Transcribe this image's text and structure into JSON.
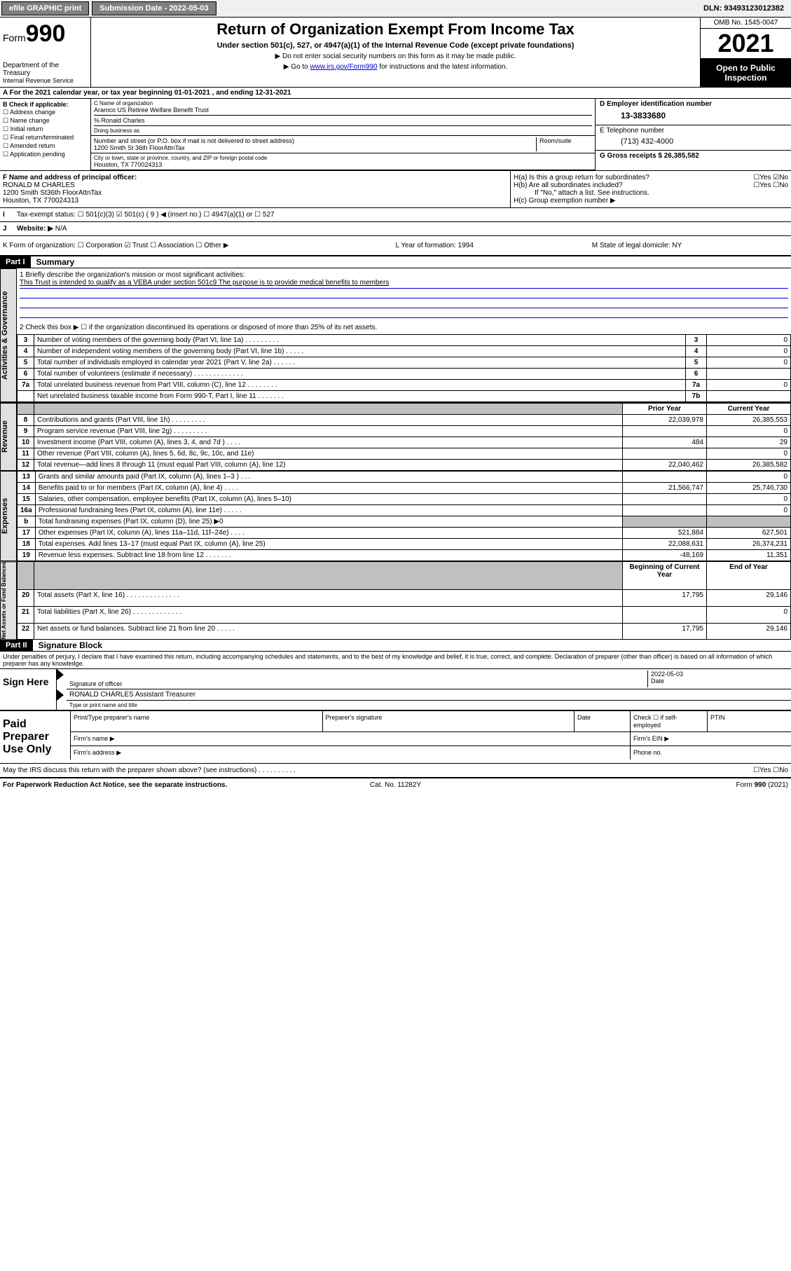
{
  "topbar": {
    "efile": "efile GRAPHIC print",
    "submission": "Submission Date - 2022-05-03",
    "dln": "DLN: 93493123012382"
  },
  "header": {
    "form_prefix": "Form",
    "form_num": "990",
    "dept": "Department of the Treasury",
    "irs": "Internal Revenue Service",
    "title": "Return of Organization Exempt From Income Tax",
    "subtitle": "Under section 501(c), 527, or 4947(a)(1) of the Internal Revenue Code (except private foundations)",
    "instr1": "▶ Do not enter social security numbers on this form as it may be made public.",
    "instr2_pre": "▶ Go to ",
    "instr2_link": "www.irs.gov/Form990",
    "instr2_post": " for instructions and the latest information.",
    "omb": "OMB No. 1545-0047",
    "year": "2021",
    "open": "Open to Public Inspection"
  },
  "sectionA": {
    "a_line": "A For the 2021 calendar year, or tax year beginning 01-01-2021   , and ending 12-31-2021",
    "b_label": "B Check if applicable:",
    "b_opts": [
      "☐ Address change",
      "☐ Name change",
      "☐ Initial return",
      "☐ Final return/terminated",
      "☐ Amended return",
      "☐ Application pending"
    ],
    "c_label": "C Name of organization",
    "c_name": "Aramco US Retiree Welfare Benefit Trust",
    "c_pct": "% Ronald Charles",
    "c_dba": "Doing business as",
    "addr_label": "Number and street (or P.O. box if mail is not delivered to street address)",
    "addr": "1200 Smith St 36th FloorAttnTax",
    "room_label": "Room/suite",
    "city_label": "City or town, state or province, country, and ZIP or foreign postal code",
    "city": "Houston, TX  770024313",
    "d_label": "D Employer identification number",
    "d_ein": "13-3833680",
    "e_label": "E Telephone number",
    "e_phone": "(713) 432-4000",
    "g_label": "G Gross receipts $ 26,385,582",
    "f_label": "F Name and address of principal officer:",
    "f_name": "RONALD M CHARLES",
    "f_addr": "1200 Smith St36th FloorAttnTax",
    "f_city": "Houston, TX  770024313",
    "ha": "H(a)  Is this a group return for subordinates?",
    "ha_ans": "☐Yes ☑No",
    "hb": "H(b)  Are all subordinates included?",
    "hb_ans": "☐Yes ☐No",
    "hb_note": "If \"No,\" attach a list. See instructions.",
    "hc": "H(c)  Group exemption number ▶",
    "i_label": "Tax-exempt status:",
    "i_opts": "☐ 501(c)(3)   ☑ 501(c) ( 9 ) ◀ (insert no.)   ☐ 4947(a)(1) or   ☐ 527",
    "j_label": "Website: ▶",
    "j_val": "N/A",
    "k_label": "K Form of organization:  ☐ Corporation  ☑ Trust  ☐ Association  ☐ Other ▶",
    "l_label": "L Year of formation: 1994",
    "m_label": "M State of legal domicile: NY"
  },
  "part1": {
    "hdr": "Part I",
    "title": "Summary",
    "q1": "1  Briefly describe the organization's mission or most significant activities:",
    "q1_ans": "This Trust is intended to qualify as a VEBA under section 501c9 The purpose is to provide medical benefits to members",
    "q2": "2  Check this box ▶ ☐ if the organization discontinued its operations or disposed of more than 25% of its net assets.",
    "rows_gov": [
      {
        "n": "3",
        "d": "Number of voting members of the governing body (Part VI, line 1a)  .  .  .  .  .  .  .  .  .",
        "b": "3",
        "v": "0"
      },
      {
        "n": "4",
        "d": "Number of independent voting members of the governing body (Part VI, line 1b)  .  .  .  .  .",
        "b": "4",
        "v": "0"
      },
      {
        "n": "5",
        "d": "Total number of individuals employed in calendar year 2021 (Part V, line 2a)  .  .  .  .  .  .",
        "b": "5",
        "v": "0"
      },
      {
        "n": "6",
        "d": "Total number of volunteers (estimate if necessary)  .  .  .  .  .  .  .  .  .  .  .  .  .",
        "b": "6",
        "v": ""
      },
      {
        "n": "7a",
        "d": "Total unrelated business revenue from Part VIII, column (C), line 12  .  .  .  .  .  .  .  .",
        "b": "7a",
        "v": "0"
      },
      {
        "n": "",
        "d": "Net unrelated business taxable income from Form 990-T, Part I, line 11  .  .  .  .  .  .  .",
        "b": "7b",
        "v": ""
      }
    ],
    "col_hdrs": {
      "prior": "Prior Year",
      "current": "Current Year"
    },
    "rows_rev": [
      {
        "n": "8",
        "d": "Contributions and grants (Part VIII, line 1h)  .  .  .  .  .  .  .  .  .",
        "p": "22,039,978",
        "c": "26,385,553"
      },
      {
        "n": "9",
        "d": "Program service revenue (Part VIII, line 2g)  .  .  .  .  .  .  .  .  .",
        "p": "",
        "c": "0"
      },
      {
        "n": "10",
        "d": "Investment income (Part VIII, column (A), lines 3, 4, and 7d )  .  .  .  .",
        "p": "484",
        "c": "29"
      },
      {
        "n": "11",
        "d": "Other revenue (Part VIII, column (A), lines 5, 6d, 8c, 9c, 10c, and 11e)",
        "p": "",
        "c": "0"
      },
      {
        "n": "12",
        "d": "Total revenue—add lines 8 through 11 (must equal Part VIII, column (A), line 12)",
        "p": "22,040,462",
        "c": "26,385,582"
      }
    ],
    "rows_exp": [
      {
        "n": "13",
        "d": "Grants and similar amounts paid (Part IX, column (A), lines 1–3 )  .  .  .",
        "p": "",
        "c": "0"
      },
      {
        "n": "14",
        "d": "Benefits paid to or for members (Part IX, column (A), line 4)  .  .  .  .",
        "p": "21,566,747",
        "c": "25,746,730"
      },
      {
        "n": "15",
        "d": "Salaries, other compensation, employee benefits (Part IX, column (A), lines 5–10)",
        "p": "",
        "c": "0"
      },
      {
        "n": "16a",
        "d": "Professional fundraising fees (Part IX, column (A), line 11e)  .  .  .  .  .",
        "p": "",
        "c": "0"
      },
      {
        "n": "b",
        "d": "Total fundraising expenses (Part IX, column (D), line 25) ▶0",
        "p": "shade",
        "c": "shade"
      },
      {
        "n": "17",
        "d": "Other expenses (Part IX, column (A), lines 11a–11d, 11f–24e)  .  .  .  .",
        "p": "521,884",
        "c": "627,501"
      },
      {
        "n": "18",
        "d": "Total expenses. Add lines 13–17 (must equal Part IX, column (A), line 25)",
        "p": "22,088,631",
        "c": "26,374,231"
      },
      {
        "n": "19",
        "d": "Revenue less expenses. Subtract line 18 from line 12  .  .  .  .  .  .  .",
        "p": "-48,169",
        "c": "11,351"
      }
    ],
    "col_hdrs2": {
      "beg": "Beginning of Current Year",
      "end": "End of Year"
    },
    "rows_net": [
      {
        "n": "20",
        "d": "Total assets (Part X, line 16)  .  .  .  .  .  .  .  .  .  .  .  .  .  .",
        "p": "17,795",
        "c": "29,146"
      },
      {
        "n": "21",
        "d": "Total liabilities (Part X, line 26)  .  .  .  .  .  .  .  .  .  .  .  .  .",
        "p": "",
        "c": "0"
      },
      {
        "n": "22",
        "d": "Net assets or fund balances. Subtract line 21 from line 20  .  .  .  .  .",
        "p": "17,795",
        "c": "29,146"
      }
    ],
    "vlabels": {
      "gov": "Activities & Governance",
      "rev": "Revenue",
      "exp": "Expenses",
      "net": "Net Assets or Fund Balances"
    }
  },
  "part2": {
    "hdr": "Part II",
    "title": "Signature Block",
    "decl": "Under penalties of perjury, I declare that I have examined this return, including accompanying schedules and statements, and to the best of my knowledge and belief, it is true, correct, and complete. Declaration of preparer (other than officer) is based on all information of which preparer has any knowledge.",
    "sign_here": "Sign Here",
    "sig_officer": "Signature of officer",
    "sig_date_val": "2022-05-03",
    "sig_date": "Date",
    "sig_name": "RONALD CHARLES Assistant Treasurer",
    "sig_name_lbl": "Type or print name and title",
    "paid": "Paid Preparer Use Only",
    "prep_name": "Print/Type preparer's name",
    "prep_sig": "Preparer's signature",
    "prep_date": "Date",
    "prep_check": "Check ☐ if self-employed",
    "prep_ptin": "PTIN",
    "firm_name": "Firm's name    ▶",
    "firm_ein": "Firm's EIN ▶",
    "firm_addr": "Firm's address ▶",
    "firm_phone": "Phone no.",
    "may_irs": "May the IRS discuss this return with the preparer shown above? (see instructions)  .  .  .  .  .  .  .  .  .  .",
    "may_ans": "☐Yes  ☐No"
  },
  "footer": {
    "pra": "For Paperwork Reduction Act Notice, see the separate instructions.",
    "cat": "Cat. No. 11282Y",
    "form": "Form 990 (2021)"
  }
}
